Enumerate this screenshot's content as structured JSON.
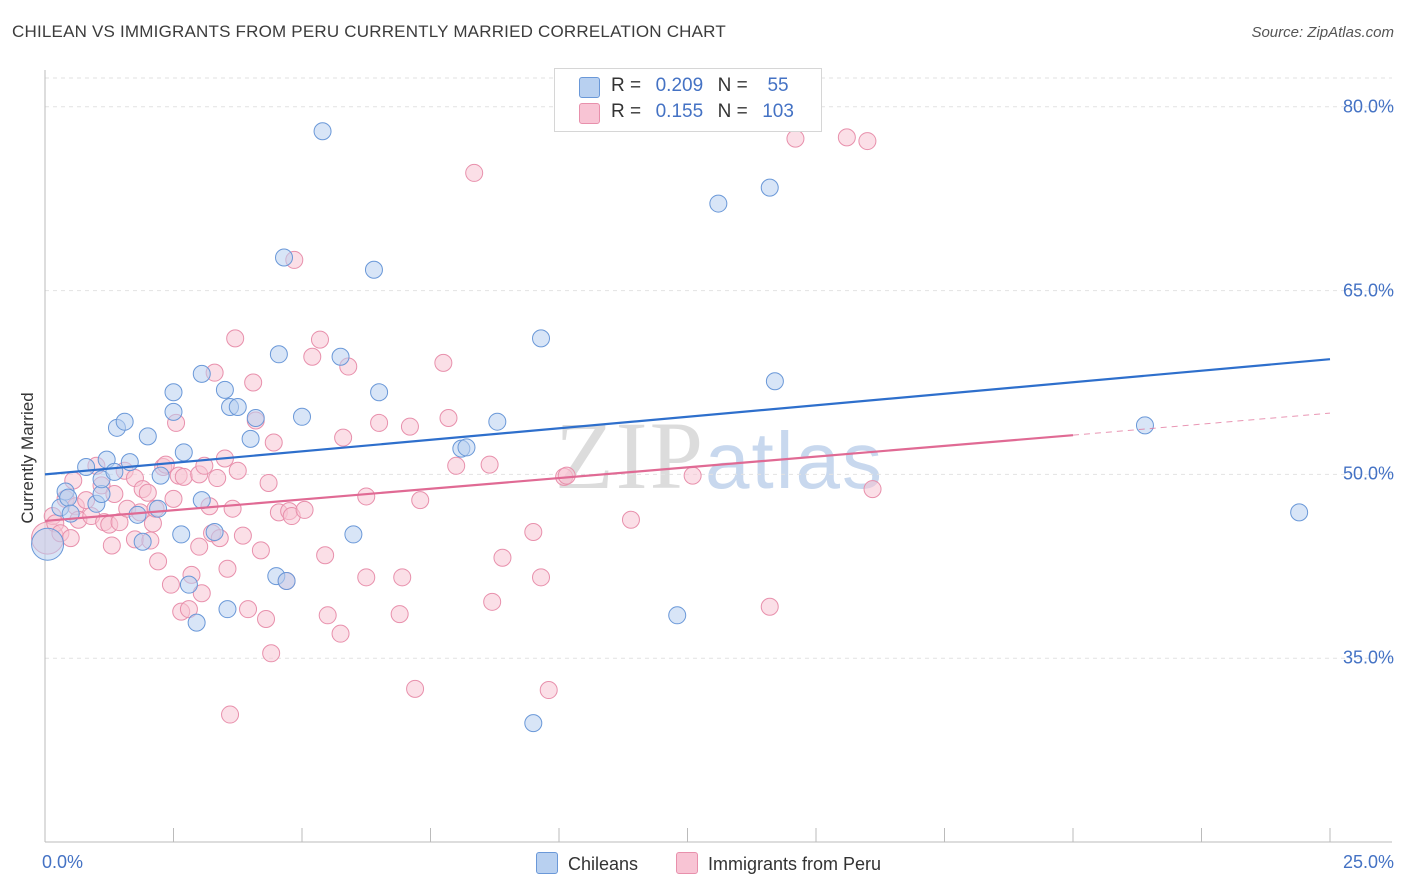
{
  "header": {
    "title": "CHILEAN VS IMMIGRANTS FROM PERU CURRENTLY MARRIED CORRELATION CHART",
    "source": "Source: ZipAtlas.com"
  },
  "watermark": {
    "zip": "ZIP",
    "atlas": "atlas"
  },
  "legend": {
    "r_label": "R =",
    "n_label": "N =",
    "rows": [
      {
        "r": "0.209",
        "n": "55",
        "color": "#b8d0f0"
      },
      {
        "r": "0.155",
        "n": "103",
        "color": "#f8c4d4"
      }
    ]
  },
  "bottom_legend": {
    "series1": "Chileans",
    "series2": "Immigrants from Peru"
  },
  "chart_data": {
    "type": "scatter",
    "title": "CHILEAN VS IMMIGRANTS FROM PERU CURRENTLY MARRIED CORRELATION CHART",
    "ylabel": "Currently Married",
    "xlabel": "",
    "xlim": [
      0,
      25
    ],
    "ylim": [
      20,
      83
    ],
    "x_tick_labels": {
      "min": "0.0%",
      "max": "25.0%"
    },
    "y_ticks": [
      {
        "value": 80,
        "label": "80.0%"
      },
      {
        "value": 65,
        "label": "65.0%"
      },
      {
        "value": 50,
        "label": "50.0%"
      },
      {
        "value": 35,
        "label": "35.0%"
      }
    ],
    "grid": true,
    "series": [
      {
        "name": "Chileans",
        "color": "#b8d0f0",
        "stroke": "#6a98d8",
        "trend": {
          "x0": 0,
          "y0": 50.0,
          "x1": 25,
          "y1": 59.4,
          "color": "#2e6fcc"
        },
        "points": [
          [
            0.05,
            44.3
          ],
          [
            0.3,
            47.3
          ],
          [
            0.4,
            48.6
          ],
          [
            0.45,
            48.1
          ],
          [
            0.5,
            46.8
          ],
          [
            0.8,
            50.6
          ],
          [
            1.0,
            47.6
          ],
          [
            1.1,
            48.4
          ],
          [
            1.1,
            49.6
          ],
          [
            1.2,
            51.2
          ],
          [
            1.35,
            50.2
          ],
          [
            1.4,
            53.8
          ],
          [
            1.55,
            54.3
          ],
          [
            1.65,
            51.0
          ],
          [
            1.8,
            46.7
          ],
          [
            1.9,
            44.5
          ],
          [
            2.0,
            53.1
          ],
          [
            2.2,
            47.2
          ],
          [
            2.25,
            49.9
          ],
          [
            2.5,
            55.1
          ],
          [
            2.5,
            56.7
          ],
          [
            2.65,
            45.1
          ],
          [
            2.7,
            51.8
          ],
          [
            2.8,
            41.0
          ],
          [
            2.95,
            37.9
          ],
          [
            3.05,
            47.9
          ],
          [
            3.05,
            58.2
          ],
          [
            3.3,
            45.3
          ],
          [
            3.5,
            56.9
          ],
          [
            3.55,
            39.0
          ],
          [
            3.6,
            55.5
          ],
          [
            3.75,
            55.5
          ],
          [
            4.0,
            52.9
          ],
          [
            4.1,
            54.6
          ],
          [
            4.55,
            59.8
          ],
          [
            4.5,
            41.7
          ],
          [
            4.65,
            67.7
          ],
          [
            4.7,
            41.3
          ],
          [
            5.0,
            54.7
          ],
          [
            5.4,
            78.0
          ],
          [
            5.75,
            59.6
          ],
          [
            6.0,
            45.1
          ],
          [
            6.4,
            66.7
          ],
          [
            6.5,
            56.7
          ],
          [
            8.1,
            52.1
          ],
          [
            8.2,
            52.2
          ],
          [
            8.8,
            54.3
          ],
          [
            9.5,
            29.7
          ],
          [
            9.65,
            61.1
          ],
          [
            12.3,
            38.5
          ],
          [
            13.1,
            72.1
          ],
          [
            14.1,
            73.4
          ],
          [
            14.2,
            57.6
          ],
          [
            21.4,
            54.0
          ],
          [
            24.4,
            46.9
          ]
        ]
      },
      {
        "name": "Immigrants from Peru",
        "color": "#f8c4d4",
        "stroke": "#e890ac",
        "trend": {
          "x0": 0,
          "y0": 46.2,
          "x1": 20.0,
          "y1": 53.2,
          "color": "#e06a94"
        },
        "trend_dashed": {
          "x0": 20.0,
          "y0": 53.2,
          "x1": 25,
          "y1": 55.0
        },
        "points": [
          [
            0.05,
            44.8
          ],
          [
            0.15,
            46.6
          ],
          [
            0.2,
            46.0
          ],
          [
            0.3,
            45.2
          ],
          [
            0.4,
            48.0
          ],
          [
            0.5,
            44.8
          ],
          [
            0.55,
            49.5
          ],
          [
            0.6,
            47.4
          ],
          [
            0.65,
            46.3
          ],
          [
            0.8,
            47.9
          ],
          [
            0.9,
            46.6
          ],
          [
            1.0,
            50.7
          ],
          [
            1.1,
            49.1
          ],
          [
            1.15,
            46.1
          ],
          [
            1.25,
            45.9
          ],
          [
            1.3,
            44.2
          ],
          [
            1.35,
            48.4
          ],
          [
            1.45,
            46.1
          ],
          [
            1.55,
            50.3
          ],
          [
            1.6,
            47.2
          ],
          [
            1.75,
            44.7
          ],
          [
            1.75,
            49.7
          ],
          [
            1.85,
            46.9
          ],
          [
            1.9,
            48.8
          ],
          [
            2.0,
            48.5
          ],
          [
            2.05,
            44.6
          ],
          [
            2.1,
            46.0
          ],
          [
            2.15,
            47.2
          ],
          [
            2.2,
            42.9
          ],
          [
            2.3,
            50.6
          ],
          [
            2.35,
            50.8
          ],
          [
            2.45,
            41.0
          ],
          [
            2.5,
            48.0
          ],
          [
            2.55,
            54.2
          ],
          [
            2.6,
            49.9
          ],
          [
            2.65,
            38.8
          ],
          [
            2.7,
            49.8
          ],
          [
            2.8,
            39.0
          ],
          [
            2.85,
            41.8
          ],
          [
            3.0,
            50.0
          ],
          [
            3.0,
            44.1
          ],
          [
            3.05,
            40.3
          ],
          [
            3.1,
            50.7
          ],
          [
            3.2,
            47.4
          ],
          [
            3.25,
            45.2
          ],
          [
            3.3,
            58.3
          ],
          [
            3.35,
            49.7
          ],
          [
            3.4,
            44.8
          ],
          [
            3.5,
            51.3
          ],
          [
            3.55,
            42.3
          ],
          [
            3.6,
            30.4
          ],
          [
            3.65,
            47.2
          ],
          [
            3.7,
            61.1
          ],
          [
            3.75,
            50.3
          ],
          [
            3.85,
            45.0
          ],
          [
            3.95,
            39.0
          ],
          [
            4.05,
            57.5
          ],
          [
            4.1,
            54.4
          ],
          [
            4.2,
            43.8
          ],
          [
            4.3,
            38.2
          ],
          [
            4.35,
            49.3
          ],
          [
            4.4,
            35.4
          ],
          [
            4.45,
            52.6
          ],
          [
            4.55,
            46.9
          ],
          [
            4.7,
            41.3
          ],
          [
            4.75,
            47.0
          ],
          [
            4.8,
            46.6
          ],
          [
            4.85,
            67.5
          ],
          [
            5.05,
            47.1
          ],
          [
            5.2,
            59.6
          ],
          [
            5.35,
            61.0
          ],
          [
            5.45,
            43.4
          ],
          [
            5.5,
            38.5
          ],
          [
            5.75,
            37.0
          ],
          [
            5.8,
            53.0
          ],
          [
            5.9,
            58.8
          ],
          [
            6.25,
            41.6
          ],
          [
            6.25,
            48.2
          ],
          [
            6.5,
            54.2
          ],
          [
            6.9,
            38.6
          ],
          [
            6.95,
            41.6
          ],
          [
            7.1,
            53.9
          ],
          [
            7.2,
            32.5
          ],
          [
            7.3,
            47.9
          ],
          [
            7.75,
            59.1
          ],
          [
            7.85,
            54.6
          ],
          [
            8.0,
            50.7
          ],
          [
            8.35,
            74.6
          ],
          [
            8.65,
            50.8
          ],
          [
            8.7,
            39.6
          ],
          [
            8.9,
            43.2
          ],
          [
            9.5,
            45.3
          ],
          [
            9.65,
            41.6
          ],
          [
            9.8,
            32.4
          ],
          [
            10.1,
            49.8
          ],
          [
            10.15,
            49.9
          ],
          [
            11.4,
            46.3
          ],
          [
            12.6,
            49.9
          ],
          [
            14.1,
            39.2
          ],
          [
            14.6,
            77.4
          ],
          [
            15.6,
            77.5
          ],
          [
            16.0,
            77.2
          ],
          [
            16.1,
            48.8
          ]
        ]
      }
    ]
  }
}
